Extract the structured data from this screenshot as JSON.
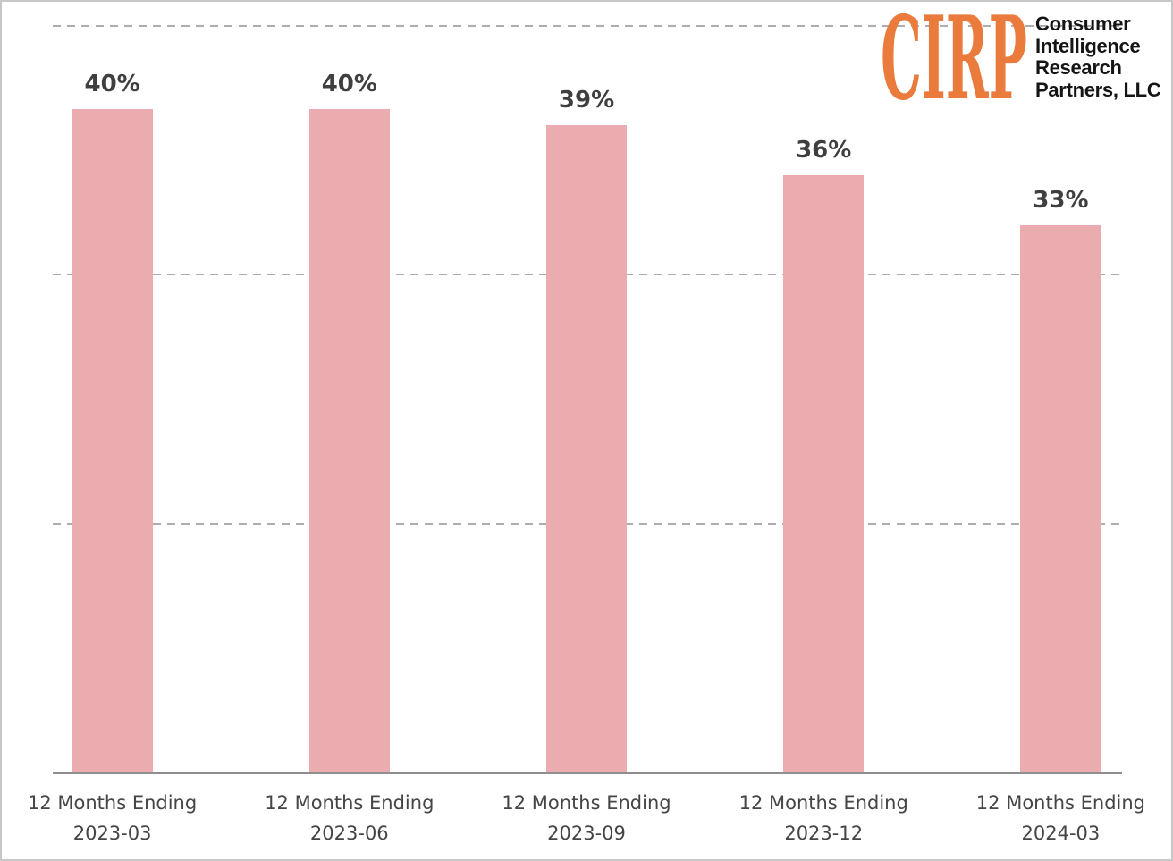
{
  "chart_data": {
    "type": "bar",
    "title": "",
    "xlabel": "",
    "ylabel": "",
    "categories": [
      {
        "line1": "12 Months Ending",
        "line2": "2023-03"
      },
      {
        "line1": "12 Months Ending",
        "line2": "2023-06"
      },
      {
        "line1": "12 Months Ending",
        "line2": "2023-09"
      },
      {
        "line1": "12 Months Ending",
        "line2": "2023-12"
      },
      {
        "line1": "12 Months Ending",
        "line2": "2024-03"
      }
    ],
    "values": [
      40,
      40,
      39,
      36,
      33
    ],
    "display_values": [
      "40%",
      "40%",
      "39%",
      "36%",
      "33%"
    ],
    "ylim": [
      0,
      45
    ],
    "gridline_values": [
      15,
      30,
      45
    ],
    "gridline_style": "dashed",
    "grid": "horizontal-only",
    "legend_position": "none",
    "bar_color": "#EAACAF",
    "value_label_color": "#3F3F3F",
    "axis_label_color": "#454545",
    "gridline_color": "#ADADAD",
    "axis_line_color": "#8F8F8F"
  },
  "logo": {
    "acronym": "CIRP",
    "org_lines": [
      "Consumer",
      "Intelligence",
      "Research",
      "Partners, LLC"
    ],
    "orange": "#EA7B3C",
    "text_color": "#151515"
  }
}
